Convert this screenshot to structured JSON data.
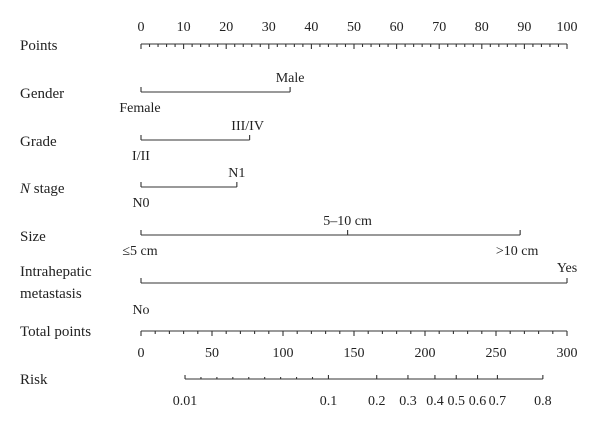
{
  "chart_data": {
    "type": "nomogram",
    "rows": [
      {
        "key": "points",
        "label": "Points",
        "range": [
          0,
          100
        ],
        "tick_labels": [
          "0",
          "10",
          "20",
          "30",
          "40",
          "50",
          "60",
          "70",
          "80",
          "90",
          "100"
        ]
      },
      {
        "key": "gender",
        "label": "Gender",
        "levels": [
          {
            "name": "Female",
            "points": 0
          },
          {
            "name": "Male",
            "points": 35
          }
        ]
      },
      {
        "key": "grade",
        "label": "Grade",
        "levels": [
          {
            "name": "I/II",
            "points": 0
          },
          {
            "name": "III/IV",
            "points": 25.5
          }
        ]
      },
      {
        "key": "n_stage",
        "label_italic": "N",
        "label_rest": " stage",
        "levels": [
          {
            "name": "N0",
            "points": 0
          },
          {
            "name": "N1",
            "points": 22.5
          }
        ]
      },
      {
        "key": "size",
        "label": "Size",
        "levels": [
          {
            "name": "≤5 cm",
            "points": 0
          },
          {
            "name": "5–10 cm",
            "points": 48.5
          },
          {
            "name": ">10 cm",
            "points": 89
          }
        ]
      },
      {
        "key": "intrahepatic",
        "label_line1": "Intrahepatic",
        "label_line2": "metastasis",
        "levels": [
          {
            "name": "No",
            "points": 0
          },
          {
            "name": "Yes",
            "points": 100
          }
        ]
      },
      {
        "key": "total",
        "label": "Total points",
        "range": [
          0,
          300
        ],
        "tick_labels": [
          "0",
          "50",
          "100",
          "150",
          "200",
          "250",
          "300"
        ]
      },
      {
        "key": "risk",
        "label": "Risk",
        "axis_total_range": [
          31,
          283
        ],
        "ticks": [
          {
            "label": "0.01",
            "total": 31
          },
          {
            "label": "0.1",
            "total": 132
          },
          {
            "label": "0.2",
            "total": 166
          },
          {
            "label": "0.3",
            "total": 188
          },
          {
            "label": "0.4",
            "total": 207
          },
          {
            "label": "0.5",
            "total": 222
          },
          {
            "label": "0.6",
            "total": 237
          },
          {
            "label": "0.7",
            "total": 251
          },
          {
            "label": "0.8",
            "total": 283
          }
        ]
      }
    ]
  }
}
